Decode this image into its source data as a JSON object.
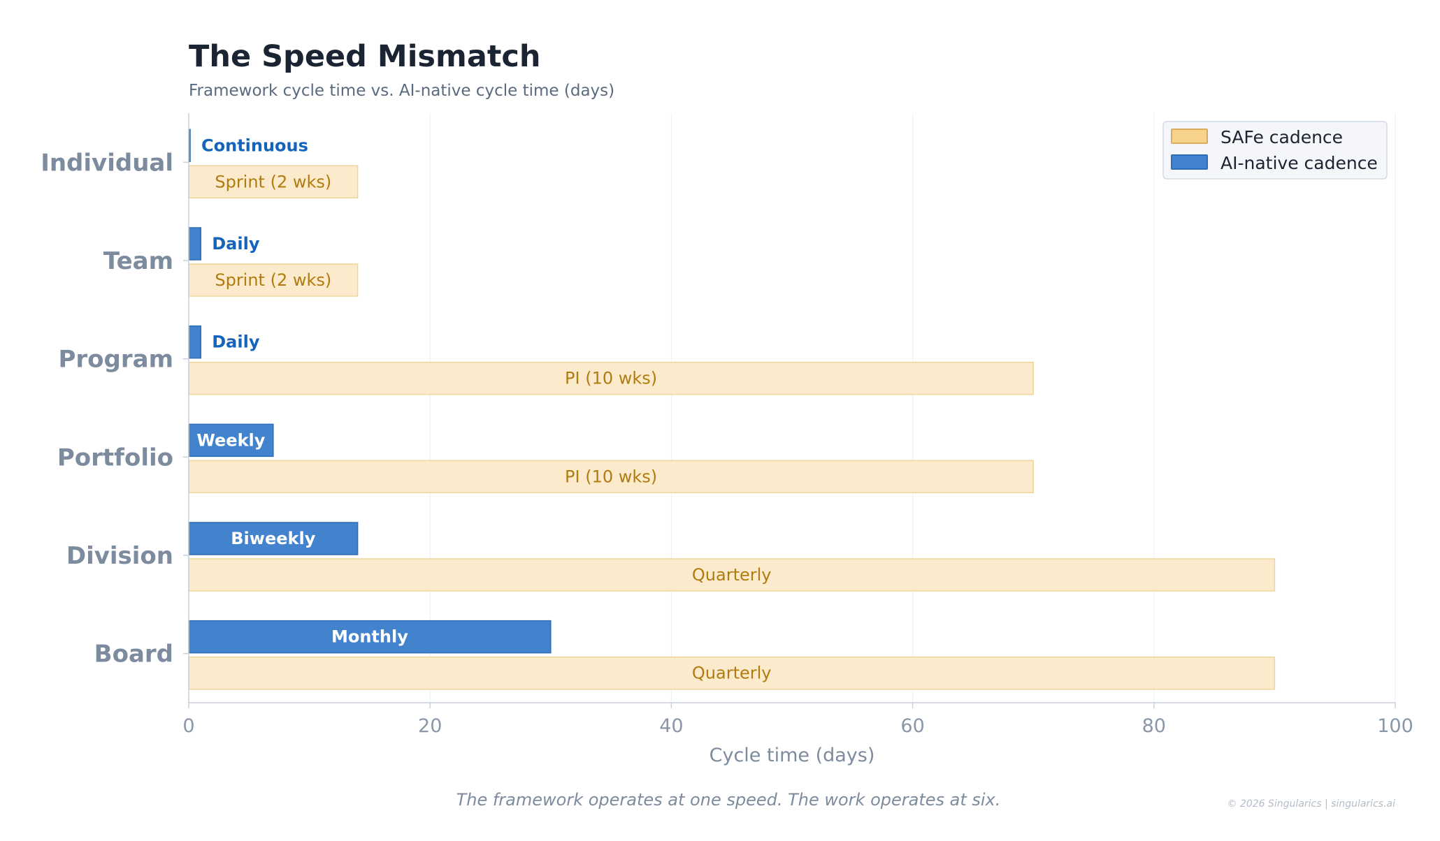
{
  "header": {
    "title": "The Speed Mismatch",
    "subtitle": "Framework cycle time vs. AI-native cycle time (days)"
  },
  "footer": {
    "caption": "The framework operates at one speed. The work operates at six.",
    "copyright": "© 2026 Singularics | singularics.ai"
  },
  "colors": {
    "safe_fill": "#fbeacb",
    "safe_stroke": "#f0d59a",
    "safe_text": "#b07c10",
    "safe_legend_fill": "#f7d38c",
    "safe_legend_stroke": "#d9ad5c",
    "ai_fill": "#4382cc",
    "ai_stroke": "#2f6db8",
    "ai_text_outside": "#1663bc",
    "ai_text_inside": "#ffffff",
    "axis": "#c9d1dc",
    "grid": "#eef1f5"
  },
  "chart_data": {
    "type": "bar",
    "orientation": "horizontal",
    "categories": [
      "Individual",
      "Team",
      "Program",
      "Portfolio",
      "Division",
      "Board"
    ],
    "series": [
      {
        "name": "SAFe cadence",
        "values": [
          14,
          14,
          70,
          70,
          90,
          90
        ],
        "labels": [
          "Sprint (2 wks)",
          "Sprint (2 wks)",
          "PI (10 wks)",
          "PI (10 wks)",
          "Quarterly",
          "Quarterly"
        ]
      },
      {
        "name": "AI-native cadence",
        "values": [
          0.1,
          1,
          1,
          7,
          14,
          30
        ],
        "labels": [
          "Continuous",
          "Daily",
          "Daily",
          "Weekly",
          "Biweekly",
          "Monthly"
        ]
      }
    ],
    "xlabel": "Cycle time (days)",
    "xlim": [
      0,
      100
    ],
    "xticks": [
      0,
      20,
      40,
      60,
      80,
      100
    ],
    "grid": "vertical",
    "legend_position": "top-right"
  }
}
